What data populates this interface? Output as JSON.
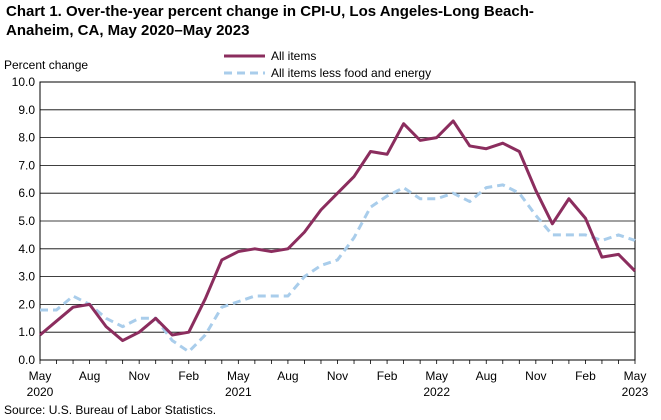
{
  "title_line1": "Chart 1. Over-the-year percent change in CPI-U, Los Angeles-Long  Beach-",
  "title_line2": "Anaheim,  CA, May 2020–May 2023",
  "source": "Source: U.S. Bureau  of Labor Statistics.",
  "colors": {
    "all_items": "#8B2D5E",
    "core": "#A9CDEB",
    "axis": "#000000"
  },
  "chart_data": {
    "type": "line",
    "ylabel": "Percent change",
    "ylim": [
      0,
      10
    ],
    "yticks": [
      "0.0",
      "1.0",
      "2.0",
      "3.0",
      "4.0",
      "5.0",
      "6.0",
      "7.0",
      "8.0",
      "9.0",
      "10.0"
    ],
    "xticks": [
      {
        "index": 0,
        "line1": "May",
        "line2": "2020"
      },
      {
        "index": 3,
        "line1": "Aug",
        "line2": ""
      },
      {
        "index": 6,
        "line1": "Nov",
        "line2": ""
      },
      {
        "index": 9,
        "line1": "Feb",
        "line2": ""
      },
      {
        "index": 12,
        "line1": "May",
        "line2": "2021"
      },
      {
        "index": 15,
        "line1": "Aug",
        "line2": ""
      },
      {
        "index": 18,
        "line1": "Nov",
        "line2": ""
      },
      {
        "index": 21,
        "line1": "Feb",
        "line2": ""
      },
      {
        "index": 24,
        "line1": "May",
        "line2": "2022"
      },
      {
        "index": 27,
        "line1": "Aug",
        "line2": ""
      },
      {
        "index": 30,
        "line1": "Nov",
        "line2": ""
      },
      {
        "index": 33,
        "line1": "Feb",
        "line2": ""
      },
      {
        "index": 36,
        "line1": "May",
        "line2": "2023"
      }
    ],
    "n_points": 37,
    "series": [
      {
        "name": "All items",
        "style": "solid",
        "values": [
          0.9,
          1.4,
          1.9,
          2.0,
          1.2,
          0.7,
          1.0,
          1.5,
          0.9,
          1.0,
          2.2,
          3.6,
          3.9,
          4.0,
          3.9,
          4.0,
          4.6,
          5.4,
          6.0,
          6.6,
          7.5,
          7.4,
          8.5,
          7.9,
          8.0,
          8.6,
          7.7,
          7.6,
          7.8,
          7.5,
          6.1,
          4.9,
          5.8,
          5.1,
          3.7,
          3.8,
          3.2
        ]
      },
      {
        "name": "All items less food and energy",
        "style": "dashed",
        "values": [
          1.8,
          1.8,
          2.3,
          2.0,
          1.5,
          1.2,
          1.5,
          1.5,
          0.7,
          0.3,
          0.9,
          1.9,
          2.1,
          2.3,
          2.3,
          2.3,
          3.0,
          3.4,
          3.6,
          4.4,
          5.5,
          5.9,
          6.2,
          5.8,
          5.8,
          6.0,
          5.7,
          6.2,
          6.3,
          6.0,
          5.2,
          4.5,
          4.5,
          4.5,
          4.3,
          4.5,
          4.3
        ]
      }
    ]
  }
}
